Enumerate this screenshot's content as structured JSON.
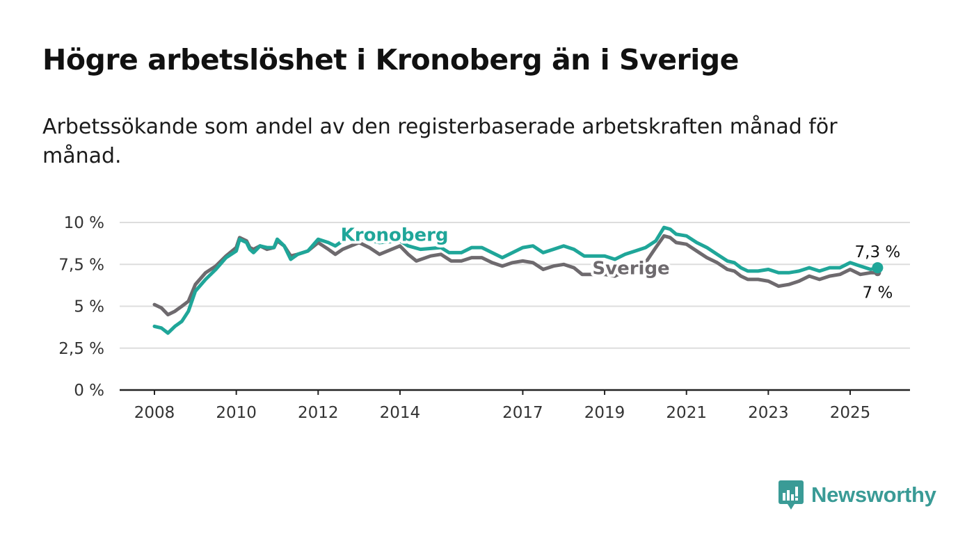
{
  "title": "Högre arbetslöshet i Kronoberg än i Sverige",
  "subtitle": "Arbetssökande som andel av den registerbaserade arbetskraften månad för månad.",
  "brand": {
    "name": "Newsworthy",
    "color": "#3a9b96",
    "icon": "bar-chart-speech-bubble-icon"
  },
  "chart_data": {
    "type": "line",
    "title": "Högre arbetslöshet i Kronoberg än i Sverige",
    "subtitle": "Arbetssökande som andel av den registerbaserade arbetskraften månad för månad.",
    "xlabel": "",
    "ylabel": "",
    "x_ticks": [
      "2008",
      "2010",
      "2012",
      "2014",
      "2017",
      "2019",
      "2021",
      "2023",
      "2025"
    ],
    "y_ticks": [
      "0 %",
      "2,5 %",
      "5 %",
      "7,5 %",
      "10 %"
    ],
    "xlim": [
      2008.0,
      2026.5
    ],
    "ylim": [
      0,
      10
    ],
    "grid": "horizontal",
    "legend": "direct labels on lines",
    "end_labels": {
      "Kronoberg": "7,3 %",
      "Sverige": "7 %"
    },
    "series": [
      {
        "name": "Kronoberg",
        "color": "#1fa699",
        "points": [
          [
            2008.0,
            3.8
          ],
          [
            2008.17,
            3.7
          ],
          [
            2008.33,
            3.4
          ],
          [
            2008.5,
            3.8
          ],
          [
            2008.67,
            4.1
          ],
          [
            2008.83,
            4.7
          ],
          [
            2009.0,
            5.9
          ],
          [
            2009.25,
            6.6
          ],
          [
            2009.5,
            7.2
          ],
          [
            2009.75,
            7.9
          ],
          [
            2010.0,
            8.3
          ],
          [
            2010.08,
            9.0
          ],
          [
            2010.25,
            8.8
          ],
          [
            2010.33,
            8.4
          ],
          [
            2010.42,
            8.2
          ],
          [
            2010.58,
            8.6
          ],
          [
            2010.75,
            8.5
          ],
          [
            2010.92,
            8.5
          ],
          [
            2011.0,
            9.0
          ],
          [
            2011.17,
            8.6
          ],
          [
            2011.33,
            7.8
          ],
          [
            2011.5,
            8.1
          ],
          [
            2011.75,
            8.3
          ],
          [
            2012.0,
            9.0
          ],
          [
            2012.25,
            8.8
          ],
          [
            2012.42,
            8.6
          ],
          [
            2012.6,
            8.9
          ],
          [
            2013.0,
            9.1
          ],
          [
            2013.5,
            8.8
          ],
          [
            2014.0,
            8.9
          ],
          [
            2014.2,
            8.6
          ],
          [
            2014.5,
            8.4
          ],
          [
            2015.0,
            8.5
          ],
          [
            2015.2,
            8.2
          ],
          [
            2015.5,
            8.2
          ],
          [
            2015.75,
            8.5
          ],
          [
            2016.0,
            8.5
          ],
          [
            2016.25,
            8.2
          ],
          [
            2016.5,
            7.9
          ],
          [
            2016.75,
            8.2
          ],
          [
            2017.0,
            8.5
          ],
          [
            2017.25,
            8.6
          ],
          [
            2017.5,
            8.2
          ],
          [
            2017.75,
            8.4
          ],
          [
            2018.0,
            8.6
          ],
          [
            2018.25,
            8.4
          ],
          [
            2018.5,
            8.0
          ],
          [
            2018.75,
            8.0
          ],
          [
            2019.0,
            8.0
          ],
          [
            2019.25,
            7.8
          ],
          [
            2019.5,
            8.1
          ],
          [
            2019.75,
            8.3
          ],
          [
            2020.0,
            8.5
          ],
          [
            2020.25,
            8.9
          ],
          [
            2020.45,
            9.7
          ],
          [
            2020.6,
            9.6
          ],
          [
            2020.75,
            9.3
          ],
          [
            2021.0,
            9.2
          ],
          [
            2021.25,
            8.8
          ],
          [
            2021.5,
            8.5
          ],
          [
            2021.75,
            8.1
          ],
          [
            2022.0,
            7.7
          ],
          [
            2022.17,
            7.6
          ],
          [
            2022.33,
            7.3
          ],
          [
            2022.5,
            7.1
          ],
          [
            2022.75,
            7.1
          ],
          [
            2023.0,
            7.2
          ],
          [
            2023.25,
            7.0
          ],
          [
            2023.5,
            7.0
          ],
          [
            2023.75,
            7.1
          ],
          [
            2024.0,
            7.3
          ],
          [
            2024.25,
            7.1
          ],
          [
            2024.5,
            7.3
          ],
          [
            2024.75,
            7.3
          ],
          [
            2025.0,
            7.6
          ],
          [
            2025.25,
            7.4
          ],
          [
            2025.5,
            7.2
          ],
          [
            2025.67,
            7.3
          ]
        ]
      },
      {
        "name": "Sverige",
        "color": "#6e6a6e",
        "points": [
          [
            2008.0,
            5.1
          ],
          [
            2008.17,
            4.9
          ],
          [
            2008.33,
            4.5
          ],
          [
            2008.5,
            4.7
          ],
          [
            2008.67,
            5.0
          ],
          [
            2008.83,
            5.3
          ],
          [
            2009.0,
            6.3
          ],
          [
            2009.25,
            7.0
          ],
          [
            2009.5,
            7.4
          ],
          [
            2009.75,
            8.0
          ],
          [
            2010.0,
            8.5
          ],
          [
            2010.08,
            9.1
          ],
          [
            2010.25,
            8.9
          ],
          [
            2010.33,
            8.5
          ],
          [
            2010.42,
            8.4
          ],
          [
            2010.58,
            8.6
          ],
          [
            2010.75,
            8.4
          ],
          [
            2010.92,
            8.5
          ],
          [
            2011.0,
            8.9
          ],
          [
            2011.17,
            8.6
          ],
          [
            2011.33,
            8.0
          ],
          [
            2011.5,
            8.1
          ],
          [
            2011.75,
            8.3
          ],
          [
            2012.0,
            8.8
          ],
          [
            2012.25,
            8.4
          ],
          [
            2012.42,
            8.1
          ],
          [
            2012.6,
            8.4
          ],
          [
            2013.0,
            8.8
          ],
          [
            2013.25,
            8.5
          ],
          [
            2013.5,
            8.1
          ],
          [
            2014.0,
            8.6
          ],
          [
            2014.2,
            8.1
          ],
          [
            2014.4,
            7.7
          ],
          [
            2014.75,
            8.0
          ],
          [
            2015.0,
            8.1
          ],
          [
            2015.25,
            7.7
          ],
          [
            2015.5,
            7.7
          ],
          [
            2015.75,
            7.9
          ],
          [
            2016.0,
            7.9
          ],
          [
            2016.25,
            7.6
          ],
          [
            2016.5,
            7.4
          ],
          [
            2016.75,
            7.6
          ],
          [
            2017.0,
            7.7
          ],
          [
            2017.25,
            7.6
          ],
          [
            2017.5,
            7.2
          ],
          [
            2017.75,
            7.4
          ],
          [
            2018.0,
            7.5
          ],
          [
            2018.25,
            7.3
          ],
          [
            2018.45,
            6.9
          ],
          [
            2018.75,
            6.9
          ],
          [
            2019.0,
            6.9
          ],
          [
            2019.25,
            6.8
          ],
          [
            2019.5,
            7.1
          ],
          [
            2019.75,
            7.2
          ],
          [
            2020.0,
            7.6
          ],
          [
            2020.25,
            8.5
          ],
          [
            2020.45,
            9.2
          ],
          [
            2020.6,
            9.1
          ],
          [
            2020.75,
            8.8
          ],
          [
            2021.0,
            8.7
          ],
          [
            2021.25,
            8.3
          ],
          [
            2021.5,
            7.9
          ],
          [
            2021.75,
            7.6
          ],
          [
            2022.0,
            7.2
          ],
          [
            2022.17,
            7.1
          ],
          [
            2022.33,
            6.8
          ],
          [
            2022.5,
            6.6
          ],
          [
            2022.75,
            6.6
          ],
          [
            2023.0,
            6.5
          ],
          [
            2023.25,
            6.2
          ],
          [
            2023.5,
            6.3
          ],
          [
            2023.75,
            6.5
          ],
          [
            2024.0,
            6.8
          ],
          [
            2024.25,
            6.6
          ],
          [
            2024.5,
            6.8
          ],
          [
            2024.75,
            6.9
          ],
          [
            2025.0,
            7.2
          ],
          [
            2025.25,
            6.9
          ],
          [
            2025.5,
            7.0
          ],
          [
            2025.67,
            7.0
          ]
        ]
      }
    ]
  }
}
